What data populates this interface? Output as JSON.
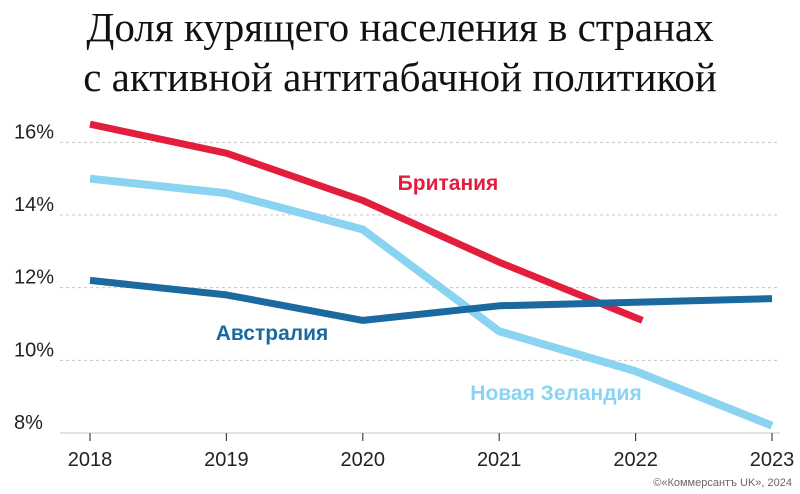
{
  "chart_data": {
    "type": "line",
    "title_line1": "Доля курящего населения в странах",
    "title_line2": "с активной антитабачной политикой",
    "x": [
      "2018",
      "2019",
      "2020",
      "2021",
      "2022",
      "2023"
    ],
    "ylim": [
      8,
      17
    ],
    "yticks": [
      "8%",
      "10%",
      "12%",
      "14%",
      "16%"
    ],
    "grid": "horizontal",
    "series": [
      {
        "name": "Британия",
        "color": "#e31e3c",
        "points": [
          [
            2018,
            16.5
          ],
          [
            2019,
            15.7
          ],
          [
            2020,
            14.4
          ],
          [
            2021,
            12.7
          ],
          [
            2022.05,
            11.1
          ]
        ]
      },
      {
        "name": "Новая Зеландия",
        "color": "#8ad4f2",
        "points": [
          [
            2018,
            15.0
          ],
          [
            2019,
            14.6
          ],
          [
            2020,
            13.6
          ],
          [
            2021,
            10.8
          ],
          [
            2022,
            9.7
          ],
          [
            2023,
            8.2
          ]
        ]
      },
      {
        "name": "Австралия",
        "color": "#1a6aa0",
        "points": [
          [
            2018,
            12.2
          ],
          [
            2019,
            11.8
          ],
          [
            2020,
            11.1
          ],
          [
            2021,
            11.5
          ],
          [
            2022,
            11.6
          ],
          [
            2023,
            11.7
          ]
        ]
      }
    ],
    "credit": "©«Коммерсантъ UK», 2024"
  }
}
